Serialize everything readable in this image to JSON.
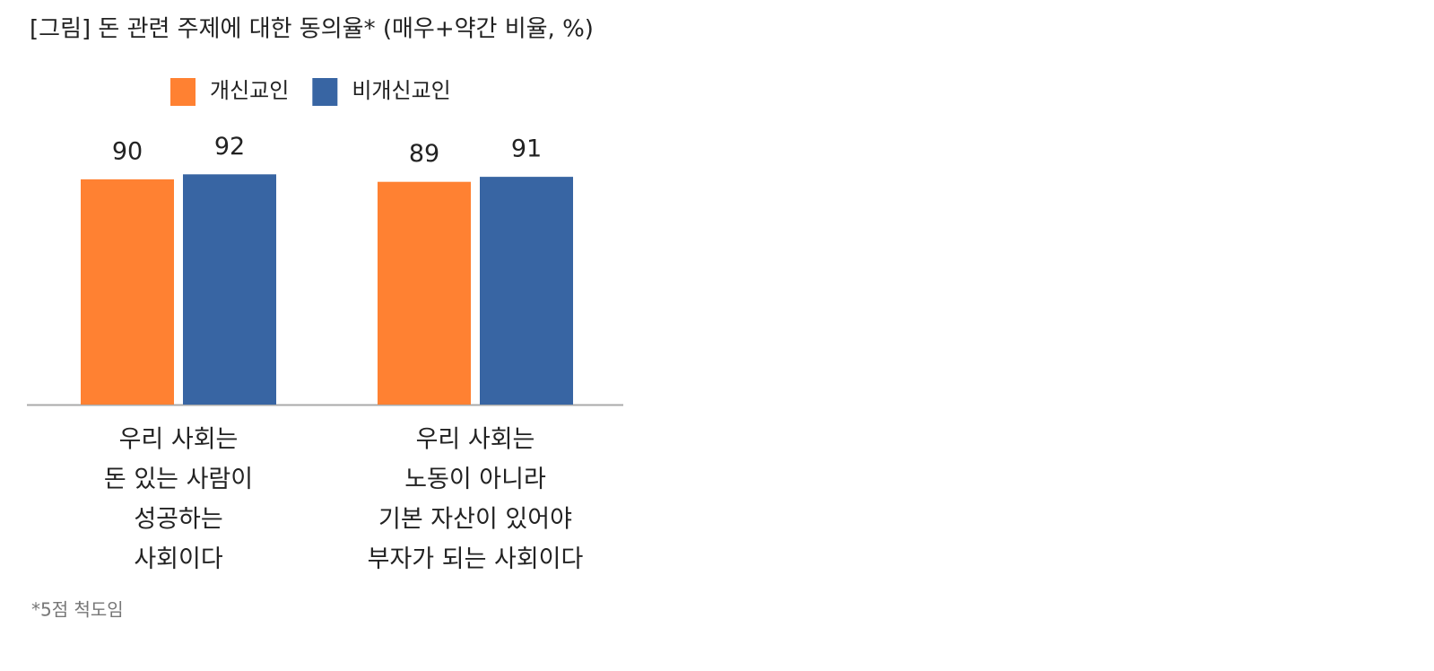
{
  "chart_data": {
    "type": "bar",
    "title": "[그림] 돈 관련 주제에 대한 동의율* (매우+약간 비율, %)",
    "categories": [
      [
        "우리 사회는",
        "돈 있는 사람이",
        "성공하는",
        "사회이다"
      ],
      [
        "우리 사회는",
        "노동이 아니라",
        "기본 자산이 있어야",
        "부자가 되는 사회이다"
      ]
    ],
    "series": [
      {
        "name": "개신교인",
        "color": "#ff8132",
        "values": [
          90,
          89
        ]
      },
      {
        "name": "비개신교인",
        "color": "#3865a3",
        "values": [
          92,
          91
        ]
      }
    ],
    "legend": "top",
    "footnote": "*5점 척도임"
  }
}
